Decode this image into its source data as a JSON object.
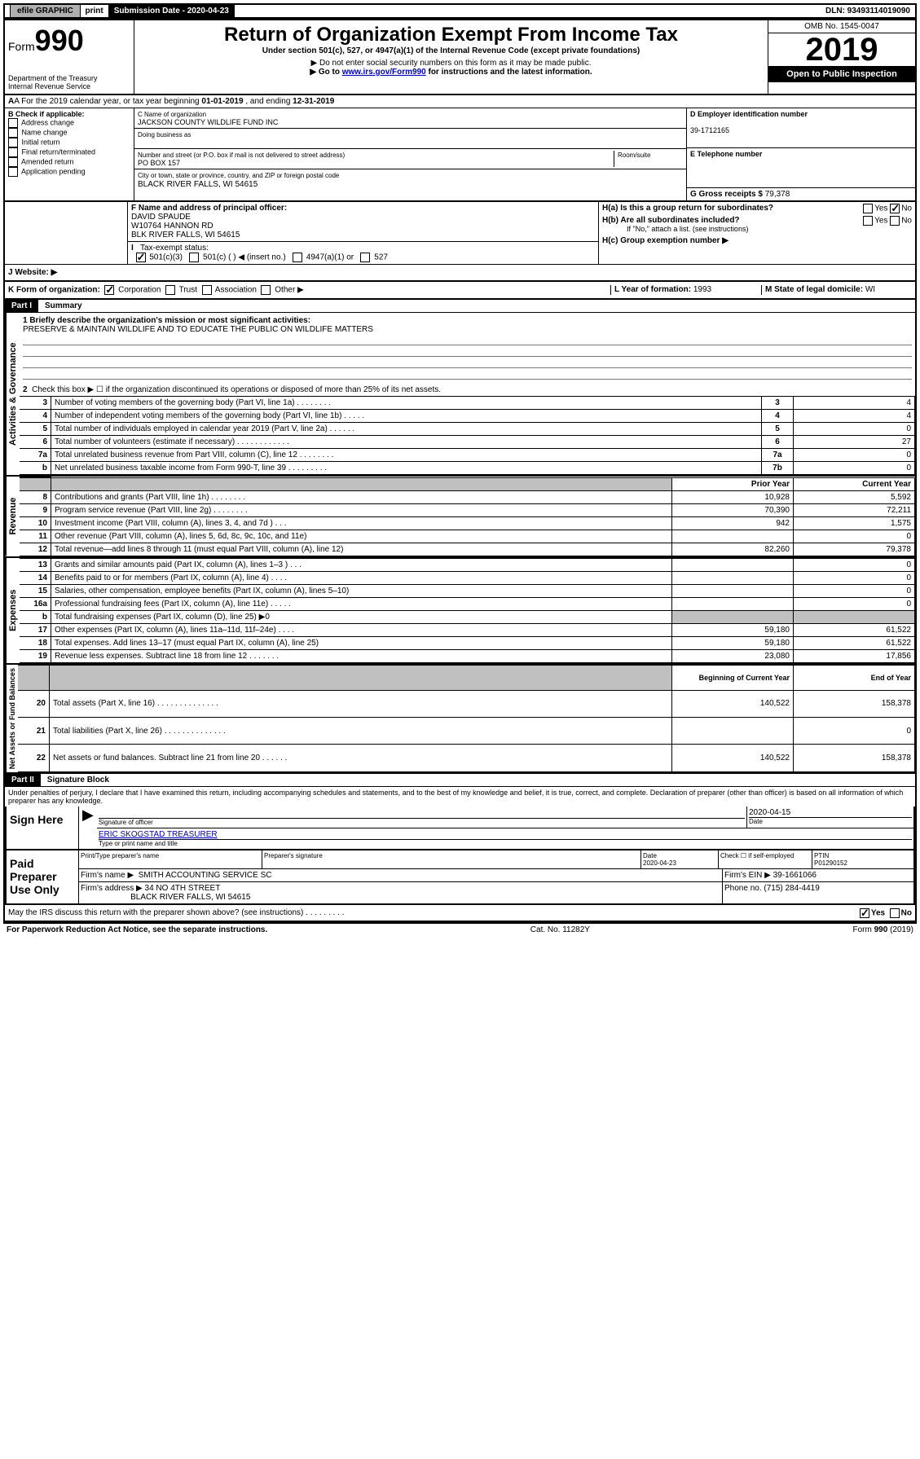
{
  "topbar": {
    "efile": "efile GRAPHIC",
    "print": "print",
    "submission_label": "Submission Date - 2020-04-23",
    "dln": "DLN: 93493114019090"
  },
  "header": {
    "form_prefix": "Form",
    "form_number": "990",
    "dept": "Department of the Treasury\nInternal Revenue Service",
    "title": "Return of Organization Exempt From Income Tax",
    "subtitle": "Under section 501(c), 527, or 4947(a)(1) of the Internal Revenue Code (except private foundations)",
    "note1": "▶ Do not enter social security numbers on this form as it may be made public.",
    "note2_pre": "▶ Go to ",
    "note2_link": "www.irs.gov/Form990",
    "note2_post": " for instructions and the latest information.",
    "omb": "OMB No. 1545-0047",
    "year": "2019",
    "open": "Open to Public Inspection"
  },
  "rowA": {
    "text_pre": "A For the 2019 calendar year, or tax year beginning ",
    "begin": "01-01-2019",
    "mid": " , and ending ",
    "end": "12-31-2019"
  },
  "sectionB": {
    "label": "B Check if applicable:",
    "items": [
      "Address change",
      "Name change",
      "Initial return",
      "Final return/terminated",
      "Amended return",
      "Application pending"
    ]
  },
  "sectionC": {
    "name_label": "C Name of organization",
    "name": "JACKSON COUNTY WILDLIFE FUND INC",
    "dba_label": "Doing business as",
    "addr_label": "Number and street (or P.O. box if mail is not delivered to street address)",
    "room_label": "Room/suite",
    "addr": "PO BOX 157",
    "city_label": "City or town, state or province, country, and ZIP or foreign postal code",
    "city": "BLACK RIVER FALLS, WI  54615"
  },
  "sectionD": {
    "label": "D Employer identification number",
    "ein": "39-1712165"
  },
  "sectionE": {
    "label": "E Telephone number"
  },
  "sectionG": {
    "label": "G Gross receipts $ ",
    "amount": "79,378"
  },
  "sectionF": {
    "label": "F Name and address of principal officer:",
    "name": "DAVID SPAUDE",
    "addr1": "W10764 HANNON RD",
    "addr2": "BLK RIVER FALLS, WI  54615"
  },
  "sectionH": {
    "ha": "H(a)  Is this a group return for subordinates?",
    "hb": "H(b)  Are all subordinates included?",
    "hb_note": "If \"No,\" attach a list. (see instructions)",
    "hc": "H(c)  Group exemption number ▶",
    "yes": "Yes",
    "no": "No"
  },
  "sectionI": {
    "label": "Tax-exempt status:",
    "opt1": "501(c)(3)",
    "opt2": "501(c) (   ) ◀ (insert no.)",
    "opt3": "4947(a)(1) or",
    "opt4": "527"
  },
  "sectionJ": {
    "label": "J   Website: ▶"
  },
  "sectionK": {
    "label": "K Form of organization:",
    "opts": [
      "Corporation",
      "Trust",
      "Association",
      "Other ▶"
    ]
  },
  "sectionL": {
    "label": "L Year of formation: ",
    "val": "1993"
  },
  "sectionM": {
    "label": "M State of legal domicile: ",
    "val": "WI"
  },
  "part1": {
    "header": "Part I",
    "title": "Summary",
    "line1_label": "1  Briefly describe the organization's mission or most significant activities:",
    "line1_text": "PRESERVE & MAINTAIN WILDLIFE AND TO EDUCATE THE PUBLIC ON WILDLIFE MATTERS",
    "side_ag": "Activities & Governance",
    "side_rev": "Revenue",
    "side_exp": "Expenses",
    "side_na": "Net Assets or Fund Balances",
    "line2": "Check this box ▶ ☐  if the organization discontinued its operations or disposed of more than 25% of its net assets.",
    "rows_ag": [
      {
        "n": "3",
        "d": "Number of voting members of the governing body (Part VI, line 1a)  .  .  .  .  .  .  .  .",
        "b": "3",
        "v": "4"
      },
      {
        "n": "4",
        "d": "Number of independent voting members of the governing body (Part VI, line 1b)  .  .  .  .  .",
        "b": "4",
        "v": "4"
      },
      {
        "n": "5",
        "d": "Total number of individuals employed in calendar year 2019 (Part V, line 2a)  .  .  .  .  .  .",
        "b": "5",
        "v": "0"
      },
      {
        "n": "6",
        "d": "Total number of volunteers (estimate if necessary)  .  .  .  .  .  .  .  .  .  .  .  .",
        "b": "6",
        "v": "27"
      },
      {
        "n": "7a",
        "d": "Total unrelated business revenue from Part VIII, column (C), line 12  .  .  .  .  .  .  .  .",
        "b": "7a",
        "v": "0"
      },
      {
        "n": "b",
        "d": "Net unrelated business taxable income from Form 990-T, line 39  .  .  .  .  .  .  .  .  .",
        "b": "7b",
        "v": "0"
      }
    ],
    "col_prior": "Prior Year",
    "col_current": "Current Year",
    "rows_rev": [
      {
        "n": "8",
        "d": "Contributions and grants (Part VIII, line 1h)  .  .  .  .  .  .  .  .",
        "p": "10,928",
        "c": "5,592"
      },
      {
        "n": "9",
        "d": "Program service revenue (Part VIII, line 2g)  .  .  .  .  .  .  .  .",
        "p": "70,390",
        "c": "72,211"
      },
      {
        "n": "10",
        "d": "Investment income (Part VIII, column (A), lines 3, 4, and 7d )  .  .  .",
        "p": "942",
        "c": "1,575"
      },
      {
        "n": "11",
        "d": "Other revenue (Part VIII, column (A), lines 5, 6d, 8c, 9c, 10c, and 11e)",
        "p": "",
        "c": "0"
      },
      {
        "n": "12",
        "d": "Total revenue—add lines 8 through 11 (must equal Part VIII, column (A), line 12)",
        "p": "82,260",
        "c": "79,378"
      }
    ],
    "rows_exp": [
      {
        "n": "13",
        "d": "Grants and similar amounts paid (Part IX, column (A), lines 1–3 )  .  .  .",
        "p": "",
        "c": "0"
      },
      {
        "n": "14",
        "d": "Benefits paid to or for members (Part IX, column (A), line 4)  .  .  .  .",
        "p": "",
        "c": "0"
      },
      {
        "n": "15",
        "d": "Salaries, other compensation, employee benefits (Part IX, column (A), lines 5–10)",
        "p": "",
        "c": "0"
      },
      {
        "n": "16a",
        "d": "Professional fundraising fees (Part IX, column (A), line 11e)  .  .  .  .  .",
        "p": "",
        "c": "0"
      },
      {
        "n": "b",
        "d": "Total fundraising expenses (Part IX, column (D), line 25) ▶0",
        "p": "",
        "c": "",
        "shade": true
      },
      {
        "n": "17",
        "d": "Other expenses (Part IX, column (A), lines 11a–11d, 11f–24e)  .  .  .  .",
        "p": "59,180",
        "c": "61,522"
      },
      {
        "n": "18",
        "d": "Total expenses. Add lines 13–17 (must equal Part IX, column (A), line 25)",
        "p": "59,180",
        "c": "61,522"
      },
      {
        "n": "19",
        "d": "Revenue less expenses. Subtract line 18 from line 12  .  .  .  .  .  .  .",
        "p": "23,080",
        "c": "17,856"
      }
    ],
    "col_begin": "Beginning of Current Year",
    "col_end": "End of Year",
    "rows_na": [
      {
        "n": "20",
        "d": "Total assets (Part X, line 16)  .  .  .  .  .  .  .  .  .  .  .  .  .  .",
        "p": "140,522",
        "c": "158,378"
      },
      {
        "n": "21",
        "d": "Total liabilities (Part X, line 26)  .  .  .  .  .  .  .  .  .  .  .  .  .  .",
        "p": "",
        "c": "0"
      },
      {
        "n": "22",
        "d": "Net assets or fund balances. Subtract line 21 from line 20  .  .  .  .  .  .",
        "p": "140,522",
        "c": "158,378"
      }
    ]
  },
  "part2": {
    "header": "Part II",
    "title": "Signature Block",
    "perjury": "Under penalties of perjury, I declare that I have examined this return, including accompanying schedules and statements, and to the best of my knowledge and belief, it is true, correct, and complete. Declaration of preparer (other than officer) is based on all information of which preparer has any knowledge.",
    "sign_here": "Sign Here",
    "sig_officer": "Signature of officer",
    "sig_date": "2020-04-15",
    "date_label": "Date",
    "officer_name": "ERIC SKOGSTAD TREASURER",
    "type_name": "Type or print name and title",
    "paid": "Paid Preparer Use Only",
    "prep_name_label": "Print/Type preparer's name",
    "prep_sig_label": "Preparer's signature",
    "prep_date_label": "Date",
    "prep_date": "2020-04-23",
    "check_self": "Check ☐ if self-employed",
    "ptin_label": "PTIN",
    "ptin": "P01290152",
    "firm_name_label": "Firm's name    ▶",
    "firm_name": "SMITH ACCOUNTING SERVICE SC",
    "firm_ein_label": "Firm's EIN ▶",
    "firm_ein": "39-1661066",
    "firm_addr_label": "Firm's address ▶",
    "firm_addr1": "34 NO 4TH STREET",
    "firm_addr2": "BLACK RIVER FALLS, WI  54615",
    "phone_label": "Phone no. ",
    "phone": "(715) 284-4419",
    "discuss": "May the IRS discuss this return with the preparer shown above? (see instructions)  .  .  .  .  .  .  .  .  .",
    "yes": "Yes",
    "no": "No"
  },
  "footer": {
    "pra": "For Paperwork Reduction Act Notice, see the separate instructions.",
    "cat": "Cat. No. 11282Y",
    "form": "Form 990 (2019)"
  }
}
